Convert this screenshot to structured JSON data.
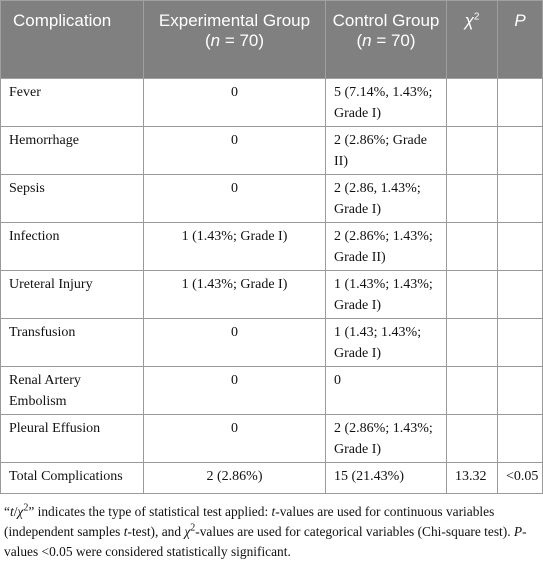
{
  "table": {
    "header": [
      [
        "Complication"
      ],
      [
        "Experimental Group (",
        "n",
        " = 70)"
      ],
      [
        "Control Group (",
        "n",
        " = 70)"
      ],
      [
        "χ",
        "2"
      ],
      [
        "P"
      ]
    ],
    "rows": [
      [
        "Fever",
        "0",
        "5 (7.14%, 1.43%; Grade I)"
      ],
      [
        "Hemorrhage",
        "0",
        "2 (2.86%; Grade II)"
      ],
      [
        "Sepsis",
        "0",
        "2 (2.86, 1.43%; Grade I)"
      ],
      [
        "Infection",
        "1 (1.43%; Grade I)",
        "2 (2.86%; 1.43%; Grade II)"
      ],
      [
        "Ureteral Injury",
        "1 (1.43%; Grade I)",
        "1 (1.43%; 1.43%; Grade I)"
      ],
      [
        "Transfusion",
        "0",
        "1 (1.43; 1.43%; Grade I)"
      ],
      [
        "Renal Artery Embolism",
        "0",
        "0"
      ],
      [
        "Pleural Effusion",
        "0",
        "2 (2.86%; 1.43%; Grade I)"
      ],
      [
        "Total Complications",
        "2 (2.86%)",
        "15 (21.43%)",
        "13.32",
        "<0.05"
      ]
    ]
  },
  "footnote": [
    "“",
    "t",
    "/",
    "χ",
    "2",
    "” indicates the type of statistical test applied: ",
    "t",
    "-values are used for continuous variables (independent samples ",
    "t",
    "-test), and ",
    "χ",
    "2",
    "-values are used for categorical variables (Chi-square test). ",
    "P",
    "-values <0.05 were considered statistically significant."
  ]
}
